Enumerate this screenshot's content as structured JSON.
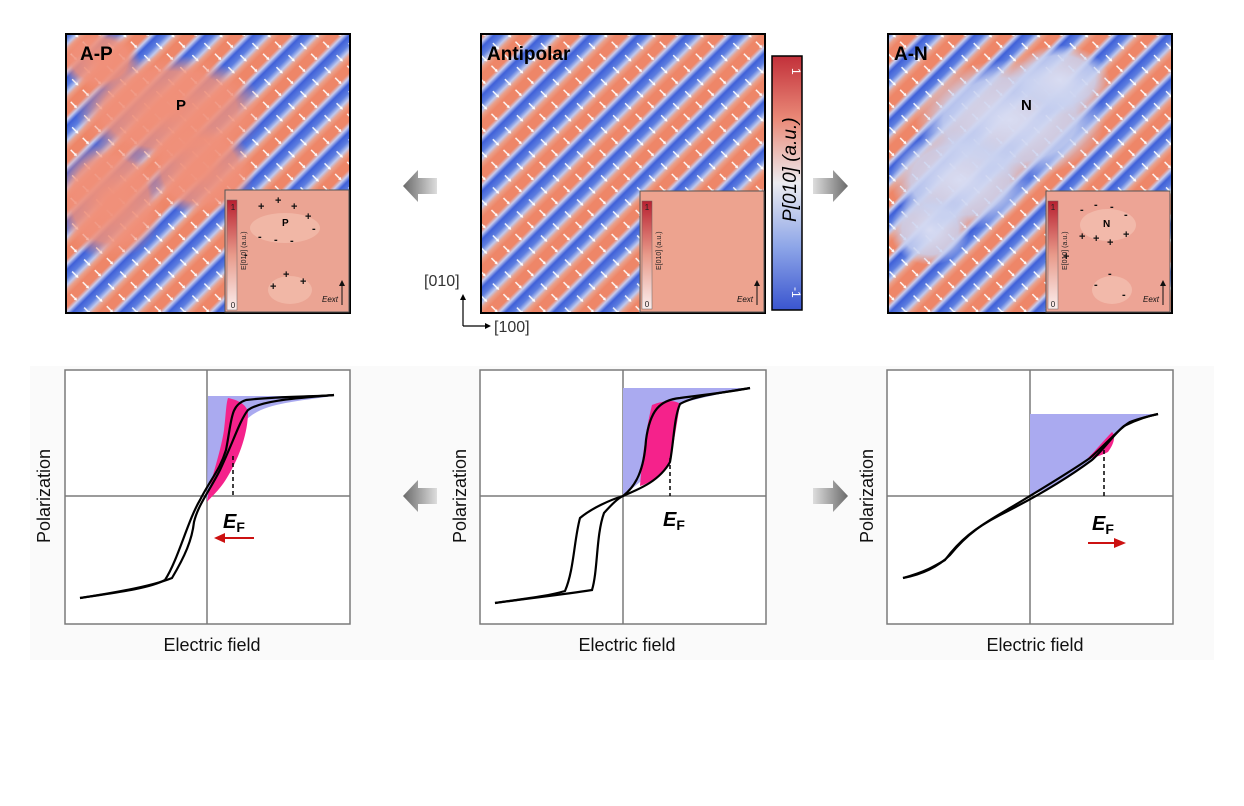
{
  "panels": {
    "ap": {
      "label": "A-P",
      "center_label": "P",
      "inset_center": "P",
      "inset_axis": "E[010] (a.u.)",
      "inset_max": "1",
      "inset_min": "0",
      "inset_field": "Eext",
      "plus_sign": "+",
      "minus_sign": "-"
    },
    "antipolar": {
      "label": "Antipolar",
      "inset_axis": "E[010] (a.u.)",
      "inset_max": "1",
      "inset_min": "0",
      "inset_field": "Eext"
    },
    "an": {
      "label": "A-N",
      "center_label": "N",
      "inset_center": "N",
      "inset_axis": "E[010] (a.u.)",
      "inset_max": "1",
      "inset_min": "0",
      "inset_field": "Eext",
      "plus_sign": "+",
      "minus_sign": "-"
    }
  },
  "colorbar": {
    "label": "P[010] (a.u.)",
    "max": "1",
    "min": "-1",
    "colors": {
      "high": "#c93a3f",
      "mid": "#e8e8ec",
      "low": "#3c5bd4"
    }
  },
  "axes": {
    "y_dir": "[010]",
    "x_dir": "[100]"
  },
  "plots": {
    "ap": {
      "ylabel": "Polarization",
      "xlabel": "Electric field",
      "ef_label": "E",
      "ef_sub": "F",
      "arrow_dir": "left"
    },
    "antipolar": {
      "ylabel": "Polarization",
      "xlabel": "Electric field",
      "ef_label": "E",
      "ef_sub": "F"
    },
    "an": {
      "ylabel": "Polarization",
      "xlabel": "Electric field",
      "ef_label": "E",
      "ef_sub": "F",
      "arrow_dir": "right"
    }
  },
  "colors": {
    "energy_fill": "#aaaaf0",
    "loss_fill": "#f5228b",
    "arrow_red": "#cc1111",
    "domain_red": "#eb8870",
    "domain_blue": "#4f6fdc"
  }
}
